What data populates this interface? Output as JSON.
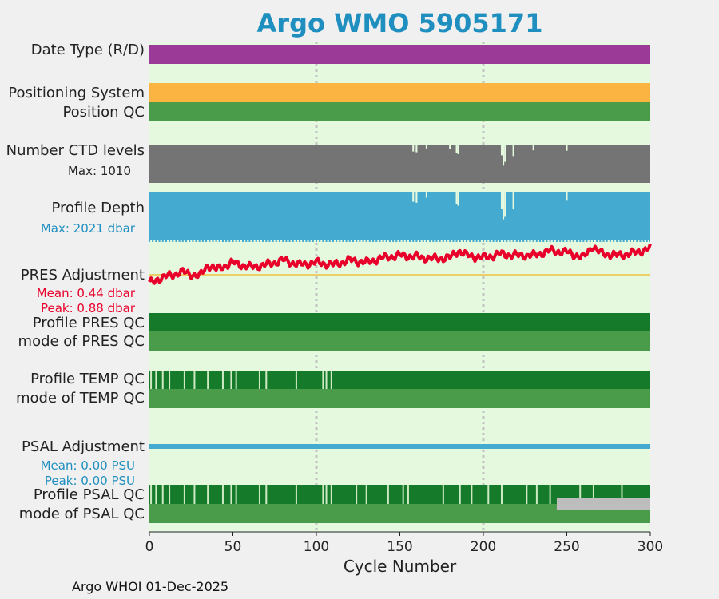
{
  "title": "Argo WMO 5905171",
  "footer": "Argo WHOI 01-Dec-2025",
  "colors": {
    "plot_bg": "#e5f9df",
    "date_type": "#9b3a97",
    "positioning": "#fbb441",
    "qc_light": "#4a9c4a",
    "qc_dark": "#157a2a",
    "ctd": "#747474",
    "depth": "#44aad0",
    "pres_line": "#e8002a",
    "pres_ref": "#f0c040",
    "psal": "#44aad0",
    "gray_bar": "#bdbdbd",
    "gap": "#e5f9df"
  },
  "labels": {
    "date_type": "Date Type (R/D)",
    "positioning_system": "Positioning System",
    "position_qc": "Position QC",
    "ctd_levels": "Number CTD levels",
    "ctd_max": "Max: 1010",
    "profile_depth": "Profile Depth",
    "depth_max": "Max: 2021 dbar",
    "pres_adjustment": "PRES Adjustment",
    "pres_mean": "Mean: 0.44 dbar",
    "pres_peak": "Peak: 0.88 dbar",
    "profile_pres_qc": "Profile PRES QC",
    "mode_pres_qc": "mode of PRES QC",
    "profile_temp_qc": "Profile TEMP QC",
    "mode_temp_qc": "mode of TEMP QC",
    "psal_adjustment": "PSAL Adjustment",
    "psal_mean": "Mean: 0.00 PSU",
    "psal_peak": "Peak: 0.00 PSU",
    "profile_psal_qc": "Profile PSAL QC",
    "mode_psal_qc": "mode of PSAL QC"
  },
  "chart_data": {
    "type": "table",
    "xlabel": "Cycle Number",
    "xlim": [
      0,
      300
    ],
    "xticks": [
      "0",
      "50",
      "100",
      "150",
      "200",
      "250",
      "300"
    ],
    "grid_x": [
      100,
      200
    ],
    "temp_qc_gaps": [
      1,
      4,
      8,
      12,
      21,
      27,
      35,
      44,
      49,
      52,
      66,
      70,
      88,
      104,
      106,
      109
    ],
    "psal_qc_gaps": [
      1,
      4,
      8,
      12,
      21,
      27,
      35,
      44,
      49,
      52,
      66,
      70,
      88,
      104,
      106,
      109,
      124,
      130,
      143,
      152,
      155,
      176,
      186,
      193,
      203,
      211,
      226,
      232,
      240,
      258,
      266,
      283
    ],
    "psal_qc_gray_range": [
      244,
      300
    ],
    "pres_adjustment": {
      "x": [
        0,
        5,
        10,
        20,
        30,
        35,
        40,
        50,
        60,
        70,
        80,
        90,
        100,
        110,
        120,
        130,
        140,
        150,
        160,
        170,
        180,
        185,
        190,
        200,
        210,
        220,
        230,
        240,
        250,
        260,
        265,
        270,
        280,
        290,
        300
      ],
      "y": [
        0.05,
        0.15,
        0.2,
        0.3,
        0.2,
        0.45,
        0.35,
        0.5,
        0.4,
        0.45,
        0.55,
        0.45,
        0.5,
        0.45,
        0.55,
        0.5,
        0.6,
        0.65,
        0.62,
        0.58,
        0.6,
        0.75,
        0.65,
        0.6,
        0.68,
        0.65,
        0.65,
        0.75,
        0.72,
        0.6,
        0.85,
        0.7,
        0.65,
        0.7,
        0.8
      ],
      "mean": 0.44,
      "peak": 0.88
    },
    "psal_adjustment": {
      "mean": 0.0,
      "peak": 0.0
    },
    "ctd_levels_max": 1010,
    "ctd_dips": [
      {
        "x": 158,
        "level": 0.82
      },
      {
        "x": 160,
        "level": 0.8
      },
      {
        "x": 166,
        "level": 0.9
      },
      {
        "x": 180,
        "level": 0.88
      },
      {
        "x": 184,
        "level": 0.78
      },
      {
        "x": 185,
        "level": 0.75
      },
      {
        "x": 211,
        "level": 0.72
      },
      {
        "x": 212,
        "level": 0.45
      },
      {
        "x": 213,
        "level": 0.55
      },
      {
        "x": 218,
        "level": 0.7
      },
      {
        "x": 230,
        "level": 0.85
      },
      {
        "x": 250,
        "level": 0.84
      }
    ],
    "profile_depth_max_dbar": 2021,
    "depth_dips": [
      {
        "x": 158,
        "level": 0.8
      },
      {
        "x": 160,
        "level": 0.78
      },
      {
        "x": 166,
        "level": 0.88
      },
      {
        "x": 184,
        "level": 0.75
      },
      {
        "x": 185,
        "level": 0.72
      },
      {
        "x": 211,
        "level": 0.65
      },
      {
        "x": 212,
        "level": 0.45
      },
      {
        "x": 213,
        "level": 0.5
      },
      {
        "x": 218,
        "level": 0.65
      },
      {
        "x": 250,
        "level": 0.82
      }
    ]
  }
}
